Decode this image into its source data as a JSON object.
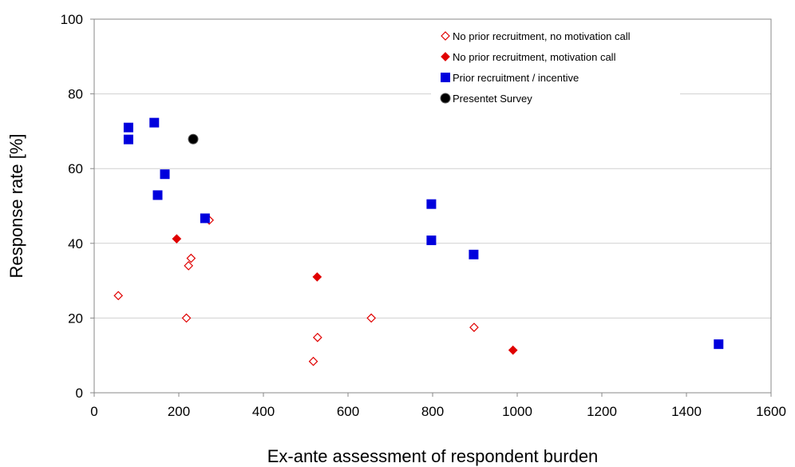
{
  "chart_data": {
    "type": "scatter",
    "title": "",
    "xlabel": "Ex-ante assessment of respondent burden",
    "ylabel": "Response rate [%]",
    "xlim": [
      0,
      1600
    ],
    "ylim": [
      0,
      100
    ],
    "x_ticks": [
      0,
      200,
      400,
      600,
      800,
      1000,
      1200,
      1400,
      1600
    ],
    "y_ticks": [
      0,
      20,
      40,
      60,
      80,
      100
    ],
    "grid": "horizontal",
    "legend_position": "top-right",
    "series": [
      {
        "name": "No prior recruitment, no motivation call",
        "marker": "diamond-open",
        "color": "#e00000",
        "points": [
          {
            "x": 57,
            "y": 26
          },
          {
            "x": 218,
            "y": 20
          },
          {
            "x": 223,
            "y": 34
          },
          {
            "x": 229,
            "y": 36
          },
          {
            "x": 272,
            "y": 46.2
          },
          {
            "x": 518,
            "y": 8.4
          },
          {
            "x": 528,
            "y": 14.8
          },
          {
            "x": 655,
            "y": 20
          },
          {
            "x": 898,
            "y": 17.5
          }
        ]
      },
      {
        "name": "No prior recruitment, motivation call",
        "marker": "diamond-filled",
        "color": "#e00000",
        "points": [
          {
            "x": 195,
            "y": 41.2
          },
          {
            "x": 527,
            "y": 31
          },
          {
            "x": 990,
            "y": 11.4
          }
        ]
      },
      {
        "name": "Prior recruitment / incentive",
        "marker": "square",
        "color": "#0000dd",
        "points": [
          {
            "x": 81,
            "y": 71
          },
          {
            "x": 81,
            "y": 67.8
          },
          {
            "x": 142,
            "y": 72.3
          },
          {
            "x": 150,
            "y": 52.9
          },
          {
            "x": 167,
            "y": 58.5
          },
          {
            "x": 262,
            "y": 46.7
          },
          {
            "x": 797,
            "y": 50.5
          },
          {
            "x": 797,
            "y": 40.8
          },
          {
            "x": 897,
            "y": 37
          },
          {
            "x": 1476,
            "y": 13
          }
        ]
      },
      {
        "name": "Presentet Survey",
        "marker": "circle",
        "color": "#000000",
        "points": [
          {
            "x": 234,
            "y": 67.9
          }
        ]
      }
    ]
  }
}
